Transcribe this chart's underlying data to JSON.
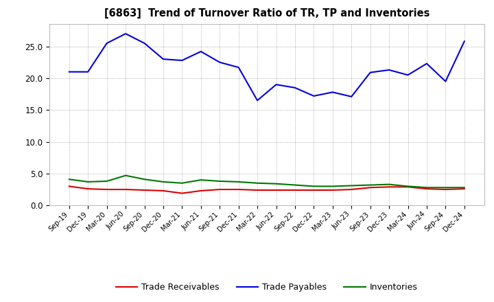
{
  "title": "[6863]  Trend of Turnover Ratio of TR, TP and Inventories",
  "x_labels": [
    "Sep-19",
    "Dec-19",
    "Mar-20",
    "Jun-20",
    "Sep-20",
    "Dec-20",
    "Mar-21",
    "Jun-21",
    "Sep-21",
    "Dec-21",
    "Mar-22",
    "Jun-22",
    "Sep-22",
    "Dec-22",
    "Mar-23",
    "Jun-23",
    "Sep-23",
    "Dec-23",
    "Mar-24",
    "Jun-24",
    "Sep-24",
    "Dec-24"
  ],
  "trade_receivables": [
    3.0,
    2.6,
    2.5,
    2.5,
    2.4,
    2.3,
    1.9,
    2.3,
    2.5,
    2.5,
    2.4,
    2.4,
    2.4,
    2.4,
    2.4,
    2.5,
    2.8,
    2.9,
    2.9,
    2.6,
    2.5,
    2.6
  ],
  "trade_payables": [
    21.0,
    21.0,
    25.5,
    27.0,
    25.5,
    23.0,
    22.8,
    24.2,
    22.5,
    21.7,
    16.5,
    19.0,
    18.5,
    17.2,
    17.8,
    17.1,
    20.9,
    21.3,
    20.5,
    22.3,
    19.5,
    25.8
  ],
  "inventories": [
    4.1,
    3.7,
    3.8,
    4.7,
    4.1,
    3.7,
    3.5,
    4.0,
    3.8,
    3.7,
    3.5,
    3.4,
    3.2,
    3.0,
    3.0,
    3.1,
    3.2,
    3.3,
    3.0,
    2.8,
    2.8,
    2.8
  ],
  "ylim": [
    0.0,
    28.5
  ],
  "yticks": [
    0.0,
    5.0,
    10.0,
    15.0,
    20.0,
    25.0
  ],
  "colors": {
    "trade_receivables": "#dd0000",
    "trade_payables": "#0000dd",
    "inventories": "#007700"
  },
  "background_color": "#ffffff",
  "plot_background": "#ffffff",
  "grid_color": "#999999",
  "legend_labels": [
    "Trade Receivables",
    "Trade Payables",
    "Inventories"
  ]
}
